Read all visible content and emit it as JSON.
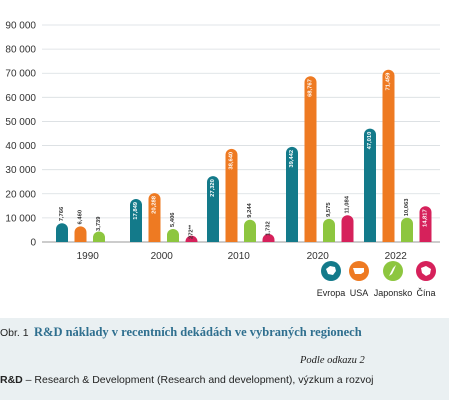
{
  "chart_data": {
    "type": "bar",
    "categories": [
      "1990",
      "2000",
      "2010",
      "2020",
      "2022"
    ],
    "series": [
      {
        "name": "Evropa",
        "color": "#137a8a",
        "icon": "europe-icon",
        "values": [
          7766,
          17849,
          27320,
          39442,
          47010
        ],
        "labels": [
          "7,766",
          "17,849",
          "27,320",
          "39,442",
          "47,010"
        ]
      },
      {
        "name": "USA",
        "color": "#ee7a22",
        "icon": "usa-icon",
        "values": [
          6460,
          20288,
          38640,
          68767,
          71459
        ],
        "labels": [
          "6,460",
          "20,288",
          "38,640",
          "68,767",
          "71,459"
        ]
      },
      {
        "name": "Japonsko",
        "color": "#8dc63f",
        "icon": "japan-icon",
        "values": [
          3739,
          5406,
          9244,
          9575,
          10063
        ],
        "labels": [
          "3,739",
          "5,406",
          "9,244",
          "9,575",
          "10,063"
        ]
      },
      {
        "name": "Čína",
        "color": "#d6215b",
        "icon": "china-icon",
        "values": [
          null,
          272,
          1732,
          11084,
          14817
        ],
        "labels": [
          "",
          "272**",
          "1,732",
          "11,084",
          "14,817"
        ]
      }
    ],
    "yticks": [
      "0",
      "10 000",
      "20 000",
      "30 000",
      "40 000",
      "50 000",
      "60 000",
      "70 000",
      "80 000",
      "90 000"
    ],
    "ylim": [
      0,
      90000
    ],
    "grid": true,
    "legend_position": "bottom-right"
  },
  "caption": {
    "figure_label": "Obr. 1",
    "title": "R&D náklady v recentních dekádách ve vybraných regionech",
    "source": "Podle odkazu 2",
    "abbrev_term": "R&D",
    "abbrev_text": " – Research & Development (Research and development), výzkum a rozvoj"
  }
}
